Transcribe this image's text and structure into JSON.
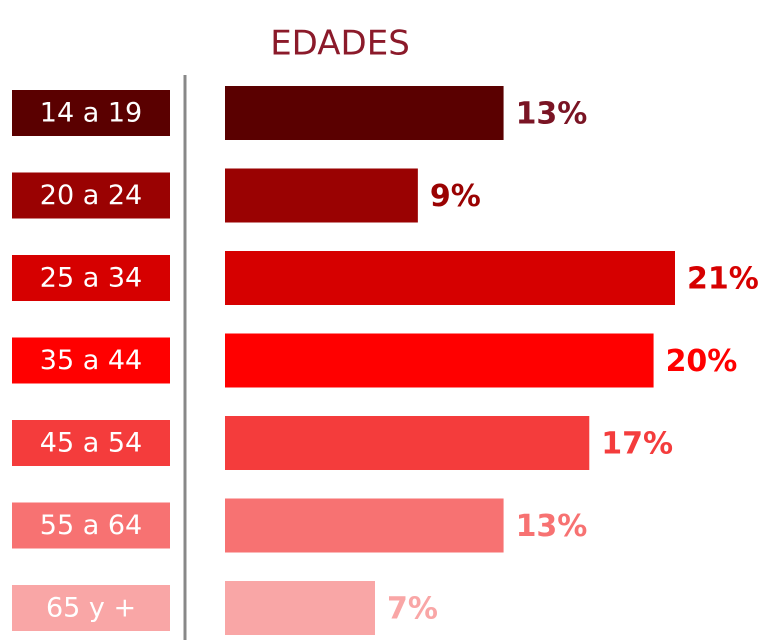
{
  "chart_data": {
    "type": "bar",
    "orientation": "horizontal",
    "title": "EDADES",
    "categories": [
      "14 a 19",
      "20 a 24",
      "25 a 34",
      "35 a 44",
      "45 a 54",
      "55 a 64",
      "65 y +"
    ],
    "values": [
      13,
      9,
      21,
      20,
      17,
      13,
      7
    ],
    "value_labels": [
      "13%",
      "9%",
      "21%",
      "20%",
      "17%",
      "13%",
      "7%"
    ],
    "colors": [
      "#5a0000",
      "#9a0202",
      "#d60000",
      "#ff0000",
      "#f43c3c",
      "#f77272",
      "#f9a6a6"
    ]
  }
}
